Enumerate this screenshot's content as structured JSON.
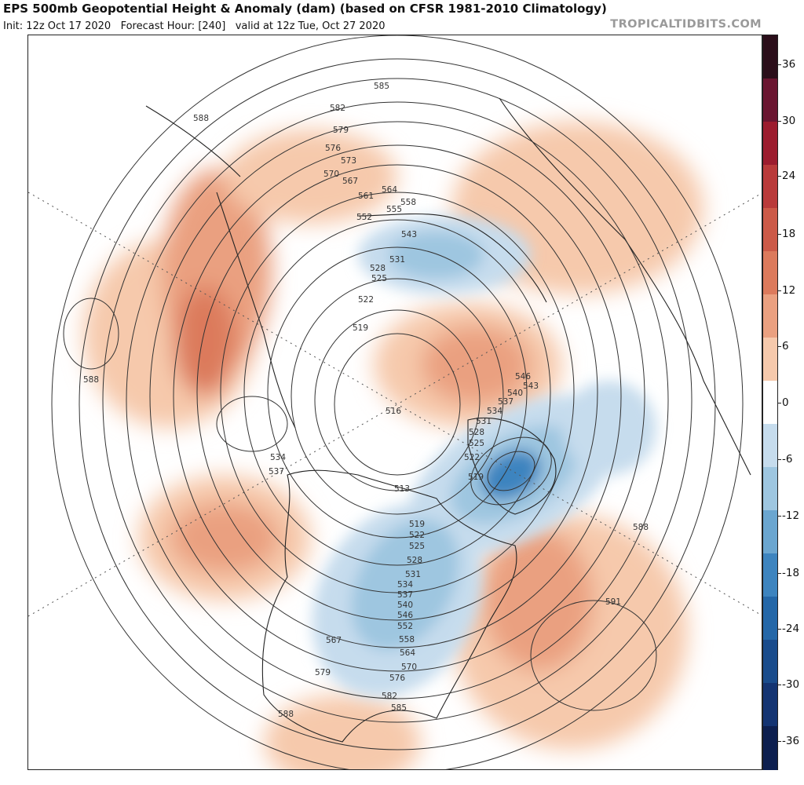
{
  "header": {
    "title": "EPS 500mb Geopotential Height & Anomaly (dam) (based on CFSR 1981-2010 Climatology)",
    "init": "Init: 12z Oct 17 2020",
    "forecast_hour": "Forecast Hour: [240]",
    "valid": "valid at 12z Tue, Oct 27 2020",
    "site": "TROPICALTIDBITS.COM"
  },
  "colorbar": {
    "ticks": [
      "36",
      "30",
      "24",
      "18",
      "12",
      "6",
      "0",
      "-6",
      "-12",
      "-18",
      "-24",
      "-30",
      "-36"
    ],
    "colors": [
      "#2b0e1a",
      "#6a1530",
      "#9c1c2e",
      "#b93a3a",
      "#cc5a48",
      "#dc7a5c",
      "#eaa080",
      "#f6c9ac",
      "#ffffff",
      "#c6dced",
      "#9ec6e0",
      "#6ba6d0",
      "#3d84bf",
      "#2467a8",
      "#1a4c8c",
      "#143472",
      "#0d1f4f"
    ]
  },
  "map": {
    "contour_labels": [
      "585",
      "582",
      "588",
      "579",
      "576",
      "573",
      "570",
      "567",
      "564",
      "561",
      "558",
      "555",
      "552",
      "543",
      "531",
      "528",
      "525",
      "522",
      "519",
      "516",
      "546",
      "543",
      "540",
      "537",
      "534",
      "531",
      "528",
      "525",
      "522",
      "519",
      "513",
      "519",
      "522",
      "525",
      "528",
      "531",
      "534",
      "537",
      "540",
      "546",
      "552",
      "558",
      "564",
      "570",
      "576",
      "582",
      "585",
      "579",
      "567",
      "588",
      "588",
      "591",
      "588",
      "534",
      "537"
    ]
  }
}
